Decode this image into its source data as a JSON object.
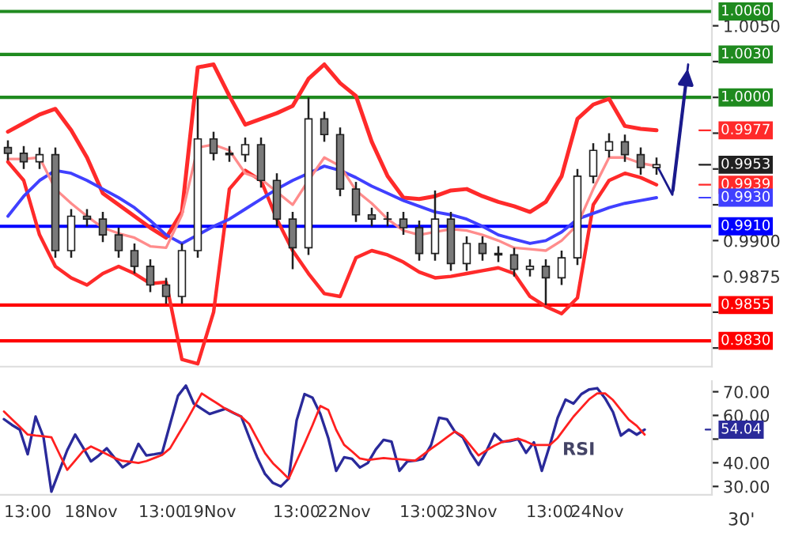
{
  "chart_data": [
    {
      "type": "candlestick",
      "color": "#202020",
      "ylim": [
        0.9812,
        1.0068
      ],
      "tick_labels": "y",
      "grid": false,
      "yticks": [
        {
          "value": 0.9825,
          "label": null
        },
        {
          "value": 0.985,
          "label": null
        },
        {
          "value": 0.9875,
          "label": "0.9875"
        },
        {
          "value": 0.99,
          "label": "0.9900"
        },
        {
          "value": 0.9925,
          "label": null
        },
        {
          "value": 0.995,
          "label": null
        },
        {
          "value": 0.9975,
          "label": null
        },
        {
          "value": 1.0,
          "label": null
        },
        {
          "value": 1.0025,
          "label": null
        },
        {
          "value": 1.005,
          "label": "1.0050"
        }
      ],
      "categories": [
        null,
        null,
        null,
        null,
        null,
        null,
        null,
        null,
        null,
        null,
        null,
        null,
        null,
        null,
        null,
        null,
        null,
        null,
        null,
        null,
        null,
        null,
        null,
        null,
        null,
        null,
        null,
        null,
        null,
        null,
        null,
        null,
        null,
        null,
        null,
        null,
        null,
        null,
        null,
        null,
        null,
        null,
        null,
        null,
        null
      ],
      "ohlc": [
        [
          0.9965,
          0.997,
          0.9956,
          0.9961
        ],
        [
          0.9961,
          0.9966,
          0.995,
          0.9955
        ],
        [
          0.9955,
          0.9965,
          0.995,
          0.996
        ],
        [
          0.996,
          0.9965,
          0.9888,
          0.9893
        ],
        [
          0.9893,
          0.9922,
          0.9888,
          0.9917
        ],
        [
          0.9917,
          0.9922,
          0.991,
          0.9915
        ],
        [
          0.9915,
          0.992,
          0.9899,
          0.9904
        ],
        [
          0.9904,
          0.9909,
          0.9888,
          0.9893
        ],
        [
          0.9893,
          0.9898,
          0.9877,
          0.9882
        ],
        [
          0.9882,
          0.9887,
          0.9864,
          0.9869
        ],
        [
          0.9869,
          0.9874,
          0.9856,
          0.9861
        ],
        [
          0.9861,
          0.9898,
          0.9856,
          0.9893
        ],
        [
          0.9893,
          1.0,
          0.9888,
          0.9971
        ],
        [
          0.9971,
          0.9976,
          0.9956,
          0.9961
        ],
        [
          0.9961,
          0.9966,
          0.9955,
          0.996
        ],
        [
          0.996,
          0.9972,
          0.9955,
          0.9967
        ],
        [
          0.9967,
          0.9972,
          0.9937,
          0.9942
        ],
        [
          0.9942,
          0.9947,
          0.991,
          0.9915
        ],
        [
          0.9915,
          0.992,
          0.988,
          0.9895
        ],
        [
          0.9895,
          1.0,
          0.989,
          0.9985
        ],
        [
          0.9985,
          0.999,
          0.9969,
          0.9974
        ],
        [
          0.9974,
          0.9979,
          0.9931,
          0.9936
        ],
        [
          0.9936,
          0.9941,
          0.9913,
          0.9918
        ],
        [
          0.9918,
          0.9923,
          0.991,
          0.9915
        ],
        [
          0.9915,
          0.992,
          0.991,
          0.9915
        ],
        [
          0.9915,
          0.992,
          0.9904,
          0.9909
        ],
        [
          0.9909,
          0.9914,
          0.9886,
          0.9891
        ],
        [
          0.9891,
          0.9935,
          0.9886,
          0.9915
        ],
        [
          0.9915,
          0.992,
          0.9879,
          0.9884
        ],
        [
          0.9884,
          0.9903,
          0.9879,
          0.9898
        ],
        [
          0.9898,
          0.9903,
          0.9886,
          0.9891
        ],
        [
          0.9891,
          0.9896,
          0.9885,
          0.989
        ],
        [
          0.989,
          0.9895,
          0.9875,
          0.988
        ],
        [
          0.988,
          0.9887,
          0.9875,
          0.9882
        ],
        [
          0.9882,
          0.9887,
          0.9855,
          0.9874
        ],
        [
          0.9874,
          0.9893,
          0.9869,
          0.9888
        ],
        [
          0.9888,
          0.995,
          0.9883,
          0.9945
        ],
        [
          0.9945,
          0.9968,
          0.994,
          0.9963
        ],
        [
          0.9963,
          0.9975,
          0.9958,
          0.9969
        ],
        [
          0.9969,
          0.9974,
          0.9955,
          0.996
        ],
        [
          0.996,
          0.9965,
          0.9946,
          0.9951
        ],
        [
          0.9951,
          0.9958,
          0.9946,
          0.9953
        ],
        null,
        null,
        null
      ],
      "series": [
        {
          "type": "line",
          "color": "#ff2a2a",
          "values": [
            0.9976,
            0.9982,
            0.9988,
            0.9992,
            0.9977,
            0.9958,
            0.9933,
            0.9925,
            0.9917,
            0.9909,
            0.9902,
            0.992,
            1.0021,
            1.0023,
            1.0001,
            0.9981,
            0.9985,
            0.9989,
            0.9994,
            1.0013,
            1.0023,
            1.001,
            1.0001,
            0.9969,
            0.9945,
            0.993,
            0.9929,
            0.9931,
            0.9935,
            0.9936,
            0.9931,
            0.9927,
            0.9924,
            0.992,
            0.9927,
            0.9945,
            0.9985,
            0.9995,
            0.9999,
            0.998,
            0.9978,
            0.9977,
            null,
            null,
            null
          ]
        },
        {
          "type": "line",
          "color": "#ff2a2a",
          "values": [
            0.9955,
            0.9942,
            0.9904,
            0.9882,
            0.9874,
            0.9869,
            0.9877,
            0.9882,
            0.9877,
            0.987,
            0.9871,
            0.9817,
            0.9814,
            0.985,
            0.9936,
            0.9949,
            0.9942,
            0.9915,
            0.9893,
            0.9877,
            0.9863,
            0.9861,
            0.9888,
            0.9893,
            0.989,
            0.9885,
            0.9878,
            0.9874,
            0.9875,
            0.9877,
            0.9879,
            0.9881,
            0.9877,
            0.9861,
            0.9854,
            0.9849,
            0.986,
            0.9925,
            0.9942,
            0.9947,
            0.9944,
            0.9939,
            null,
            null,
            null
          ]
        },
        {
          "type": "line",
          "color": "#4040ff",
          "values": [
            0.9917,
            0.9931,
            0.9942,
            0.9949,
            0.9947,
            0.9942,
            0.9936,
            0.993,
            0.9923,
            0.9914,
            0.9904,
            0.9898,
            0.9904,
            0.991,
            0.9915,
            0.9922,
            0.9929,
            0.9936,
            0.9942,
            0.9947,
            0.9952,
            0.9949,
            0.9944,
            0.9938,
            0.9933,
            0.9928,
            0.9924,
            0.992,
            0.9918,
            0.9915,
            0.991,
            0.9904,
            0.9901,
            0.9898,
            0.99,
            0.9906,
            0.9915,
            0.9919,
            0.9923,
            0.9926,
            0.9928,
            0.993,
            null,
            null,
            null
          ]
        },
        {
          "type": "line",
          "color": "#ff8c8c",
          "values": [
            0.9957,
            0.9957,
            0.9958,
            0.9936,
            0.9926,
            0.9917,
            0.9909,
            0.9905,
            0.9902,
            0.9896,
            0.9895,
            0.9918,
            0.9965,
            0.9967,
            0.9963,
            0.9947,
            0.9943,
            0.9934,
            0.9925,
            0.9942,
            0.9958,
            0.9952,
            0.9935,
            0.9926,
            0.9915,
            0.9907,
            0.9904,
            0.9906,
            0.9908,
            0.9907,
            0.9904,
            0.99,
            0.9895,
            0.9894,
            0.9893,
            0.99,
            0.9911,
            0.9936,
            0.9958,
            0.9958,
            0.9954,
            0.9952,
            null,
            null,
            null
          ]
        },
        {
          "type": "line",
          "color": "#1a1a8c",
          "values": [
            null,
            null,
            null,
            null,
            null,
            null,
            null,
            null,
            null,
            null,
            null,
            null,
            null,
            null,
            null,
            null,
            null,
            null,
            null,
            null,
            null,
            null,
            null,
            null,
            null,
            null,
            null,
            null,
            null,
            null,
            null,
            null,
            null,
            null,
            null,
            null,
            null,
            null,
            null,
            null,
            null,
            0.9953,
            0.9932,
            1.0023,
            null
          ]
        }
      ],
      "ref_lines": [
        {
          "axis": "y",
          "value": 1.006,
          "label": "1.0060",
          "color": "#1f8a1f"
        },
        {
          "axis": "y",
          "value": 1.003,
          "label": "1.0030",
          "color": "#1f8a1f"
        },
        {
          "axis": "y",
          "value": 1.0,
          "label": "1.0000",
          "color": "#1f8a1f"
        },
        {
          "axis": "y",
          "value": 0.991,
          "label": "0.9910",
          "color": "#0000ff"
        },
        {
          "axis": "y",
          "value": 0.9855,
          "label": "0.9855",
          "color": "#ff0000"
        },
        {
          "axis": "y",
          "value": 0.983,
          "label": "0.9830",
          "color": "#ff0000"
        }
      ],
      "annotations": [
        "0.9953",
        "0.9977",
        "0.9939",
        "0.9930"
      ]
    },
    {
      "type": "line",
      "ylim": [
        26.5,
        74.5
      ],
      "grid": false,
      "yticks": [
        {
          "value": 30,
          "label": "30.00"
        },
        {
          "value": 40,
          "label": "40.00"
        },
        {
          "value": 50,
          "label": null
        },
        {
          "value": 60,
          "label": "60.00"
        },
        {
          "value": 70,
          "label": "70.00"
        }
      ],
      "categories": [
        null,
        null,
        null,
        "13:00",
        null,
        null,
        null,
        null,
        null,
        null,
        null,
        "18Nov",
        null,
        null,
        null,
        null,
        null,
        null,
        null,
        null,
        "13:00",
        null,
        null,
        null,
        null,
        null,
        "19Nov",
        null,
        null,
        null,
        null,
        null,
        null,
        null,
        null,
        null,
        null,
        "13:00",
        null,
        null,
        null,
        null,
        null,
        "22Nov",
        null,
        null,
        null,
        null,
        null,
        null,
        null,
        null,
        null,
        "13:00",
        null,
        null,
        null,
        null,
        null,
        "23Nov",
        null,
        null,
        null,
        null,
        null,
        null,
        null,
        null,
        null,
        "13:00",
        null,
        null,
        null,
        null,
        null,
        "24Nov",
        null,
        null,
        null,
        null,
        null,
        null,
        null,
        null,
        null,
        null,
        null,
        null,
        null,
        null
      ],
      "series": [
        {
          "color": "#2a2a9a",
          "values": [
            58.4,
            56,
            54,
            43.6,
            59.5,
            50.8,
            27.8,
            36.6,
            45.3,
            51.9,
            46.4,
            40.6,
            43.1,
            46.1,
            42,
            38.1,
            40.2,
            48,
            43.1,
            43.6,
            44.2,
            56.3,
            68.3,
            72.6,
            65,
            62.8,
            60.6,
            61.7,
            62.8,
            61.1,
            59.5,
            50.8,
            42.3,
            35.3,
            31.5,
            30,
            33.3,
            57.9,
            69,
            67.5,
            60.6,
            50.5,
            36.6,
            42.3,
            41.7,
            38,
            39.9,
            45.6,
            49.7,
            48.9,
            36.6,
            40.6,
            40.9,
            41.7,
            47.5,
            59,
            58.4,
            53.2,
            50.8,
            44.2,
            39.1,
            45,
            52.2,
            48.9,
            49.2,
            50,
            44.2,
            48.6,
            36.6,
            47.3,
            59,
            66.7,
            65,
            69,
            71,
            71.5,
            67.2,
            61.4,
            51.5,
            54,
            51.9,
            54,
            null,
            null,
            null,
            null,
            null,
            null,
            null,
            null
          ]
        },
        {
          "color": "#ff2020",
          "values": [
            61.7,
            58.4,
            55.2,
            51.9,
            51.5,
            51.2,
            50.8,
            43.8,
            37,
            40.9,
            44.9,
            46.9,
            45.3,
            43.6,
            42,
            40.8,
            40.4,
            39.9,
            40.7,
            42,
            43.3,
            46.1,
            51.7,
            57.3,
            63.3,
            69.3,
            67.1,
            65,
            62.8,
            61.2,
            59.5,
            56.4,
            50.2,
            44.1,
            39.8,
            36.6,
            33.3,
            40.7,
            48.1,
            55.8,
            64,
            62.3,
            53.9,
            47.6,
            44.8,
            41.8,
            41.2,
            41.6,
            42,
            41.7,
            41.5,
            41.2,
            40.9,
            43.4,
            45.9,
            48.3,
            50.8,
            53.2,
            51.3,
            47.2,
            43.1,
            45.2,
            47.2,
            48.8,
            49.5,
            50.2,
            49,
            47.5,
            47.5,
            47.5,
            50.5,
            55,
            59.5,
            63.2,
            66.9,
            69.3,
            69.3,
            66.5,
            62.3,
            58.2,
            55.6,
            51.9,
            null,
            null,
            null,
            null,
            null,
            null,
            null,
            null
          ]
        }
      ],
      "annotations": [
        "54.04",
        "RSI",
        "30'"
      ]
    }
  ]
}
